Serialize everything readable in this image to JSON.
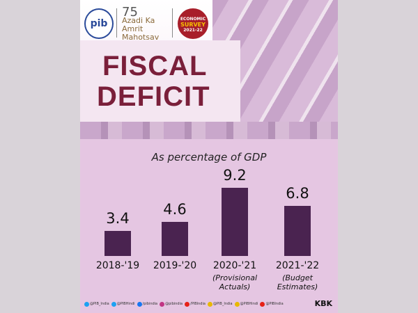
{
  "header": {
    "title_line1": "FISCAL",
    "title_line2": "DEFICIT",
    "logos": {
      "pib": "pib",
      "azadi": "Azadi Ka Amrit Mahotsav",
      "survey_line1": "ECONOMIC",
      "survey_line2": "SURVEY",
      "survey_year": "2021-22"
    }
  },
  "chart_data": {
    "type": "bar",
    "title": "As percentage of GDP",
    "categories": [
      "2018-'19",
      "2019-'20",
      "2020-'21",
      "2021-'22"
    ],
    "notes": [
      "",
      "",
      "(Provisional Actuals)",
      "(Budget Estimates)"
    ],
    "values": [
      3.4,
      4.6,
      9.2,
      6.8
    ],
    "value_labels": [
      "3.4",
      "4.6",
      "9.2",
      "6.8"
    ],
    "ylim": [
      0,
      9.2
    ],
    "grid": false,
    "bar_color": "#4a2350"
  },
  "footer": {
    "handles": [
      {
        "icon": "twitter-icon",
        "text": "@PIB_India",
        "color": "#1da1f2"
      },
      {
        "icon": "twitter-icon",
        "text": "@PIBHindi",
        "color": "#1da1f2"
      },
      {
        "icon": "facebook-icon",
        "text": "/pibindia",
        "color": "#1877f2"
      },
      {
        "icon": "instagram-icon",
        "text": "@pibindia",
        "color": "#c13584"
      },
      {
        "icon": "youtube-icon",
        "text": "/PIBIndia",
        "color": "#e62117"
      },
      {
        "icon": "koo-icon",
        "text": "@PIB_India",
        "color": "#e8b800"
      },
      {
        "icon": "koo-icon",
        "text": "@PIBHindi",
        "color": "#e8b800"
      },
      {
        "icon": "sharechat-icon",
        "text": "@PIBIndia",
        "color": "#e62117"
      }
    ],
    "credit": "KBK"
  }
}
